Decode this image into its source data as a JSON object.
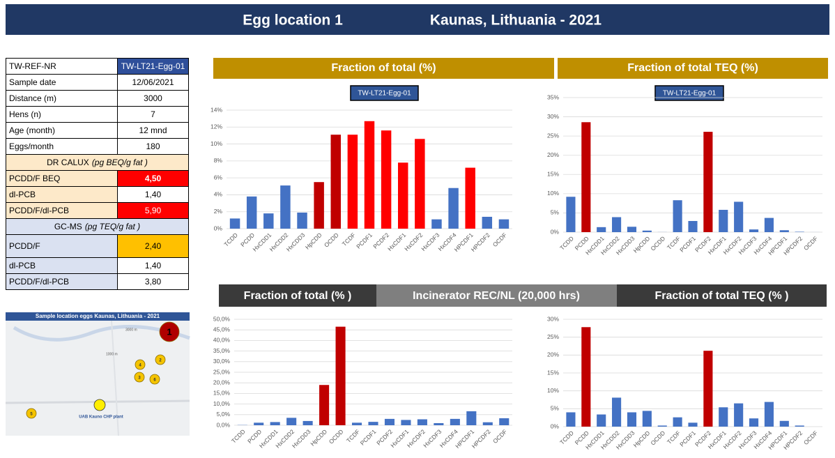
{
  "header": {
    "title": "Egg location 1",
    "location": "Kaunas, Lithuania - 2021"
  },
  "table": {
    "rows": [
      {
        "cells": [
          "TW-REF-NR",
          "TW-LT21-Egg-01"
        ],
        "fill": "#2f4f9a",
        "text_color": "#ffffff"
      },
      {
        "cells": [
          "Sample date",
          "12/06/2021"
        ]
      },
      {
        "cells": [
          "Distance (m)",
          "3000"
        ]
      },
      {
        "cells": [
          "Hens (n)",
          "7"
        ]
      },
      {
        "cells": [
          "Age (month)",
          "12 mnd"
        ]
      },
      {
        "cells": [
          "Eggs/month",
          "180"
        ]
      },
      {
        "section": "DR CALUX",
        "unit": "(pg BEQ/g fat )",
        "fill": "#fde9c9"
      },
      {
        "cells": [
          "PCDD/F BEQ",
          "4,50"
        ],
        "label_fill": "#fde9c9",
        "fill": "#ff0000",
        "text_color": "#ffffff",
        "bold": true
      },
      {
        "cells": [
          "dl-PCB",
          "1,40"
        ],
        "label_fill": "#fde9c9"
      },
      {
        "cells": [
          "PCDD/F/dl-PCB",
          "5,90"
        ],
        "label_fill": "#fde9c9",
        "fill": "#ff0000",
        "text_color": "#ffffff"
      },
      {
        "section": "GC-MS",
        "unit": "(pg TEQ/g fat )",
        "fill": "#dae1f1"
      },
      {
        "cells": [
          "PCDD/F",
          "2,40"
        ],
        "label_fill": "#dae1f1",
        "fill": "#ffc000",
        "tall": true
      },
      {
        "cells": [
          "dl-PCB",
          "1,40"
        ],
        "label_fill": "#dae1f1"
      },
      {
        "cells": [
          "PCDD/F/dl-PCB",
          "3,80"
        ],
        "label_fill": "#dae1f1"
      }
    ]
  },
  "map": {
    "title": "Sample location eggs Kaunas, Lithuania - 2021",
    "markers": [
      "1",
      "2",
      "3",
      "4",
      "5",
      "6"
    ],
    "plant": "UAB Kauno CHP plant",
    "scale": [
      "3000 m",
      "1000 m"
    ]
  },
  "section_banner": "Incinerator REC/NL (20,000 hrs)",
  "chart_data": [
    {
      "type": "bar",
      "title": "Fraction of total (%)",
      "banner_color": "#bf8f00",
      "series_label": "TW-LT21-Egg-01",
      "categories": [
        "TCDD",
        "PCDD",
        "HxCDD1",
        "HxCDD2",
        "HxCDD3",
        "HpCDD",
        "OCDD",
        "TCDF",
        "PCDF1",
        "PCDF2",
        "HxCDF1",
        "HxCDF2",
        "HxCDF3",
        "HxCDF4",
        "HPCDF1",
        "HPCDF2",
        "OCDF"
      ],
      "values": [
        1.2,
        3.8,
        1.8,
        5.1,
        1.9,
        5.5,
        11.1,
        11.1,
        12.7,
        11.6,
        7.8,
        10.6,
        1.1,
        4.8,
        7.2,
        1.4,
        1.1
      ],
      "colors": [
        "#4472c4",
        "#4472c4",
        "#4472c4",
        "#4472c4",
        "#4472c4",
        "#c00000",
        "#c00000",
        "#ff0000",
        "#ff0000",
        "#ff0000",
        "#ff0000",
        "#ff0000",
        "#4472c4",
        "#4472c4",
        "#ff0000",
        "#4472c4",
        "#4472c4"
      ],
      "ylim": [
        0,
        14
      ],
      "yticks": [
        {
          "value": 0,
          "label": "0%"
        },
        {
          "value": 2,
          "label": "2%"
        },
        {
          "value": 4,
          "label": "4%"
        },
        {
          "value": 6,
          "label": "6%"
        },
        {
          "value": 8,
          "label": "8%"
        },
        {
          "value": 10,
          "label": "10%"
        },
        {
          "value": 12,
          "label": "12%"
        },
        {
          "value": 14,
          "label": "14%"
        }
      ],
      "grid": true
    },
    {
      "type": "bar",
      "title": "Fraction of total TEQ (%)",
      "banner_color": "#bf8f00",
      "series_label": "TW-LT21-Egg-01",
      "categories": [
        "TCDD",
        "PCDD",
        "HxCDD1",
        "HxCDD2",
        "HxCDD3",
        "HpCDD",
        "OCDD",
        "TCDF",
        "PCDF1",
        "PCDF2",
        "HxCDF1",
        "HxCDF2",
        "HxCDF3",
        "HxCDF4",
        "HPCDF1",
        "HPCDF2",
        "OCDF"
      ],
      "values": [
        9.2,
        28.6,
        1.3,
        3.9,
        1.4,
        0.4,
        0.02,
        8.3,
        2.9,
        26.1,
        5.8,
        7.9,
        0.7,
        3.7,
        0.5,
        0.1,
        0.01
      ],
      "colors": [
        "#4472c4",
        "#c00000",
        "#4472c4",
        "#4472c4",
        "#4472c4",
        "#4472c4",
        "#4472c4",
        "#4472c4",
        "#4472c4",
        "#c00000",
        "#4472c4",
        "#4472c4",
        "#4472c4",
        "#4472c4",
        "#4472c4",
        "#4472c4",
        "#4472c4"
      ],
      "ylim": [
        0,
        35
      ],
      "yticks": [
        {
          "value": 0,
          "label": "0%"
        },
        {
          "value": 5,
          "label": "5%"
        },
        {
          "value": 10,
          "label": "10%"
        },
        {
          "value": 15,
          "label": "15%"
        },
        {
          "value": 20,
          "label": "20%"
        },
        {
          "value": 25,
          "label": "25%"
        },
        {
          "value": 30,
          "label": "30%"
        },
        {
          "value": 35,
          "label": "35%"
        }
      ],
      "grid": true
    },
    {
      "type": "bar",
      "title": "Fraction of total (% )",
      "banner_color": "#3a3a3a",
      "categories": [
        "TCDD",
        "PCDD",
        "HxCDD1",
        "HxCDD2",
        "HxCDD3",
        "HpCDD",
        "OCDD",
        "TCDF",
        "PCDF1",
        "PCDF2",
        "HxCDF1",
        "HxCDF2",
        "HxCDF3",
        "HxCDF4",
        "HPCDF1",
        "HPCDF2",
        "OCDF"
      ],
      "values": [
        0.1,
        1.2,
        1.5,
        3.5,
        2.0,
        19.0,
        46.5,
        1.2,
        1.6,
        3.0,
        2.5,
        2.8,
        1.0,
        3.0,
        6.6,
        1.4,
        3.3
      ],
      "colors": [
        "#4472c4",
        "#4472c4",
        "#4472c4",
        "#4472c4",
        "#4472c4",
        "#c00000",
        "#c00000",
        "#4472c4",
        "#4472c4",
        "#4472c4",
        "#4472c4",
        "#4472c4",
        "#4472c4",
        "#4472c4",
        "#4472c4",
        "#4472c4",
        "#4472c4"
      ],
      "ylim": [
        0,
        50
      ],
      "yticks": [
        {
          "value": 0,
          "label": "0,0%"
        },
        {
          "value": 5,
          "label": "5,0%"
        },
        {
          "value": 10,
          "label": "10,0%"
        },
        {
          "value": 15,
          "label": "15,0%"
        },
        {
          "value": 20,
          "label": "20,0%"
        },
        {
          "value": 25,
          "label": "25,0%"
        },
        {
          "value": 30,
          "label": "30,0%"
        },
        {
          "value": 35,
          "label": "35,0%"
        },
        {
          "value": 40,
          "label": "40,0%"
        },
        {
          "value": 45,
          "label": "45,0%"
        },
        {
          "value": 50,
          "label": "50,0%"
        }
      ],
      "grid": true
    },
    {
      "type": "bar",
      "title": "Fraction of total TEQ (% )",
      "banner_color": "#3a3a3a",
      "categories": [
        "TCDD",
        "PCDD",
        "HxCDD1",
        "HxCDD2",
        "HxCDD3",
        "HpCDD",
        "OCDD",
        "TCDF",
        "PCDF1",
        "PCDF2",
        "HxCDF1",
        "HxCDF2",
        "HxCDF3",
        "HxCDF4",
        "HPCDF1",
        "HPCDF2",
        "OCDF"
      ],
      "values": [
        4.0,
        27.8,
        3.4,
        8.1,
        4.0,
        4.4,
        0.3,
        2.6,
        1.1,
        21.2,
        5.4,
        6.5,
        2.3,
        6.9,
        1.6,
        0.3,
        0.0
      ],
      "colors": [
        "#4472c4",
        "#c00000",
        "#4472c4",
        "#4472c4",
        "#4472c4",
        "#4472c4",
        "#4472c4",
        "#4472c4",
        "#4472c4",
        "#c00000",
        "#4472c4",
        "#4472c4",
        "#4472c4",
        "#4472c4",
        "#4472c4",
        "#4472c4",
        "#4472c4"
      ],
      "ylim": [
        0,
        30
      ],
      "yticks": [
        {
          "value": 0,
          "label": "0%"
        },
        {
          "value": 5,
          "label": "5%"
        },
        {
          "value": 10,
          "label": "10%"
        },
        {
          "value": 15,
          "label": "15%"
        },
        {
          "value": 20,
          "label": "20%"
        },
        {
          "value": 25,
          "label": "25%"
        },
        {
          "value": 30,
          "label": "30%"
        }
      ],
      "grid": true
    }
  ]
}
